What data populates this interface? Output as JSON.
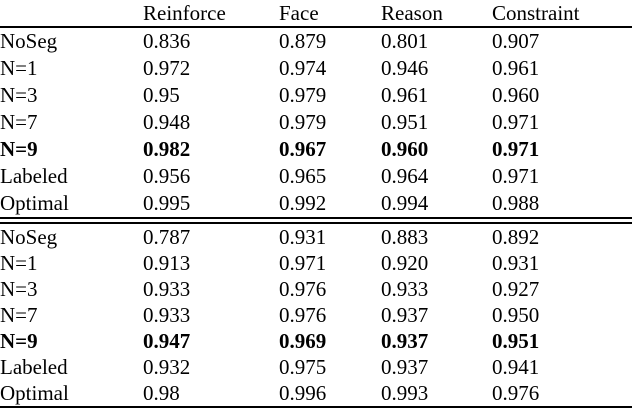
{
  "colors": {
    "text": "#000000",
    "background": "#ffffff",
    "rule": "#000000"
  },
  "table": {
    "columns": [
      "",
      "Reinforce",
      "Face",
      "Reason",
      "Constraint"
    ],
    "sections": [
      {
        "rows": [
          {
            "label": "NoSeg",
            "bold": false,
            "values": [
              "0.836",
              "0.879",
              "0.801",
              "0.907"
            ]
          },
          {
            "label": "N=1",
            "bold": false,
            "values": [
              "0.972",
              "0.974",
              "0.946",
              "0.961"
            ]
          },
          {
            "label": "N=3",
            "bold": false,
            "values": [
              "0.95",
              "0.979",
              "0.961",
              "0.960"
            ]
          },
          {
            "label": "N=7",
            "bold": false,
            "values": [
              "0.948",
              "0.979",
              "0.951",
              "0.971"
            ]
          },
          {
            "label": "N=9",
            "bold": true,
            "values": [
              "0.982",
              "0.967",
              "0.960",
              "0.971"
            ]
          },
          {
            "label": "Labeled",
            "bold": false,
            "values": [
              "0.956",
              "0.965",
              "0.964",
              "0.971"
            ]
          },
          {
            "label": "Optimal",
            "bold": false,
            "values": [
              "0.995",
              "0.992",
              "0.994",
              "0.988"
            ]
          }
        ]
      },
      {
        "rows": [
          {
            "label": "NoSeg",
            "bold": false,
            "values": [
              "0.787",
              "0.931",
              "0.883",
              "0.892"
            ]
          },
          {
            "label": "N=1",
            "bold": false,
            "values": [
              "0.913",
              "0.971",
              "0.920",
              "0.931"
            ]
          },
          {
            "label": "N=3",
            "bold": false,
            "values": [
              "0.933",
              "0.976",
              "0.933",
              "0.927"
            ]
          },
          {
            "label": "N=7",
            "bold": false,
            "values": [
              "0.933",
              "0.976",
              "0.937",
              "0.950"
            ]
          },
          {
            "label": "N=9",
            "bold": true,
            "values": [
              "0.947",
              "0.969",
              "0.937",
              "0.951"
            ]
          },
          {
            "label": "Labeled",
            "bold": false,
            "values": [
              "0.932",
              "0.975",
              "0.937",
              "0.941"
            ]
          },
          {
            "label": "Optimal",
            "bold": false,
            "values": [
              "0.98",
              "0.996",
              "0.993",
              "0.976"
            ]
          }
        ]
      }
    ]
  }
}
